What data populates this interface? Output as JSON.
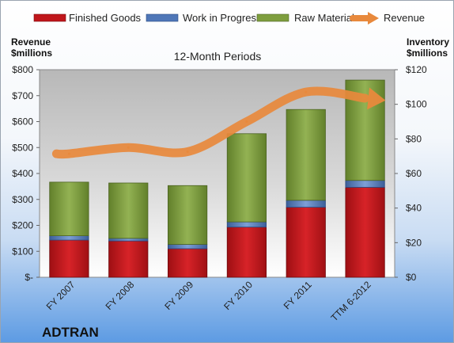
{
  "chart_data": {
    "type": "bar",
    "subtitle": "12-Month Periods",
    "company": "ADTRAN",
    "categories": [
      "FY 2007",
      "FY 2008",
      "FY 2009",
      "FY 2010",
      "FY 2011",
      "TTM 6-2012"
    ],
    "left_axis": {
      "title_line1": "Revenue",
      "title_line2": "$millions",
      "ylim": [
        0,
        800
      ],
      "ticks": [
        0,
        100,
        200,
        300,
        400,
        500,
        600,
        700,
        800
      ],
      "tick_labels": [
        "$-",
        "$100",
        "$200",
        "$300",
        "$400",
        "$500",
        "$600",
        "$700",
        "$800"
      ]
    },
    "right_axis": {
      "title_line1": "Inventory",
      "title_line2": "$millions",
      "ylim": [
        0,
        120
      ],
      "ticks": [
        0,
        20,
        40,
        60,
        80,
        100,
        120
      ],
      "tick_labels": [
        "$0",
        "$20",
        "$40",
        "$60",
        "$80",
        "$100",
        "$120"
      ]
    },
    "stacked_series": [
      {
        "name": "Finished Goods",
        "axis": "right",
        "values": [
          21.5,
          21.0,
          16.5,
          29.0,
          40.5,
          52.0
        ]
      },
      {
        "name": "Work in Progress",
        "axis": "right",
        "values": [
          2.5,
          1.5,
          2.5,
          3.0,
          4.0,
          4.0
        ]
      },
      {
        "name": "Raw Materials",
        "axis": "right",
        "values": [
          31.0,
          32.0,
          34.0,
          51.0,
          52.5,
          58.0
        ]
      }
    ],
    "line_series": {
      "name": "Revenue",
      "axis": "left",
      "values": [
        476,
        500,
        484,
        600,
        714,
        690
      ]
    },
    "legend": [
      "Finished Goods",
      "Work in Progress",
      "Raw Materials",
      "Revenue"
    ],
    "legend_position": "top",
    "grid": false,
    "colors": {
      "finished_goods": "#c0161b",
      "work_in_progress": "#4f77b8",
      "raw_materials": "#7e9e3e",
      "revenue": "#e8893c"
    }
  }
}
